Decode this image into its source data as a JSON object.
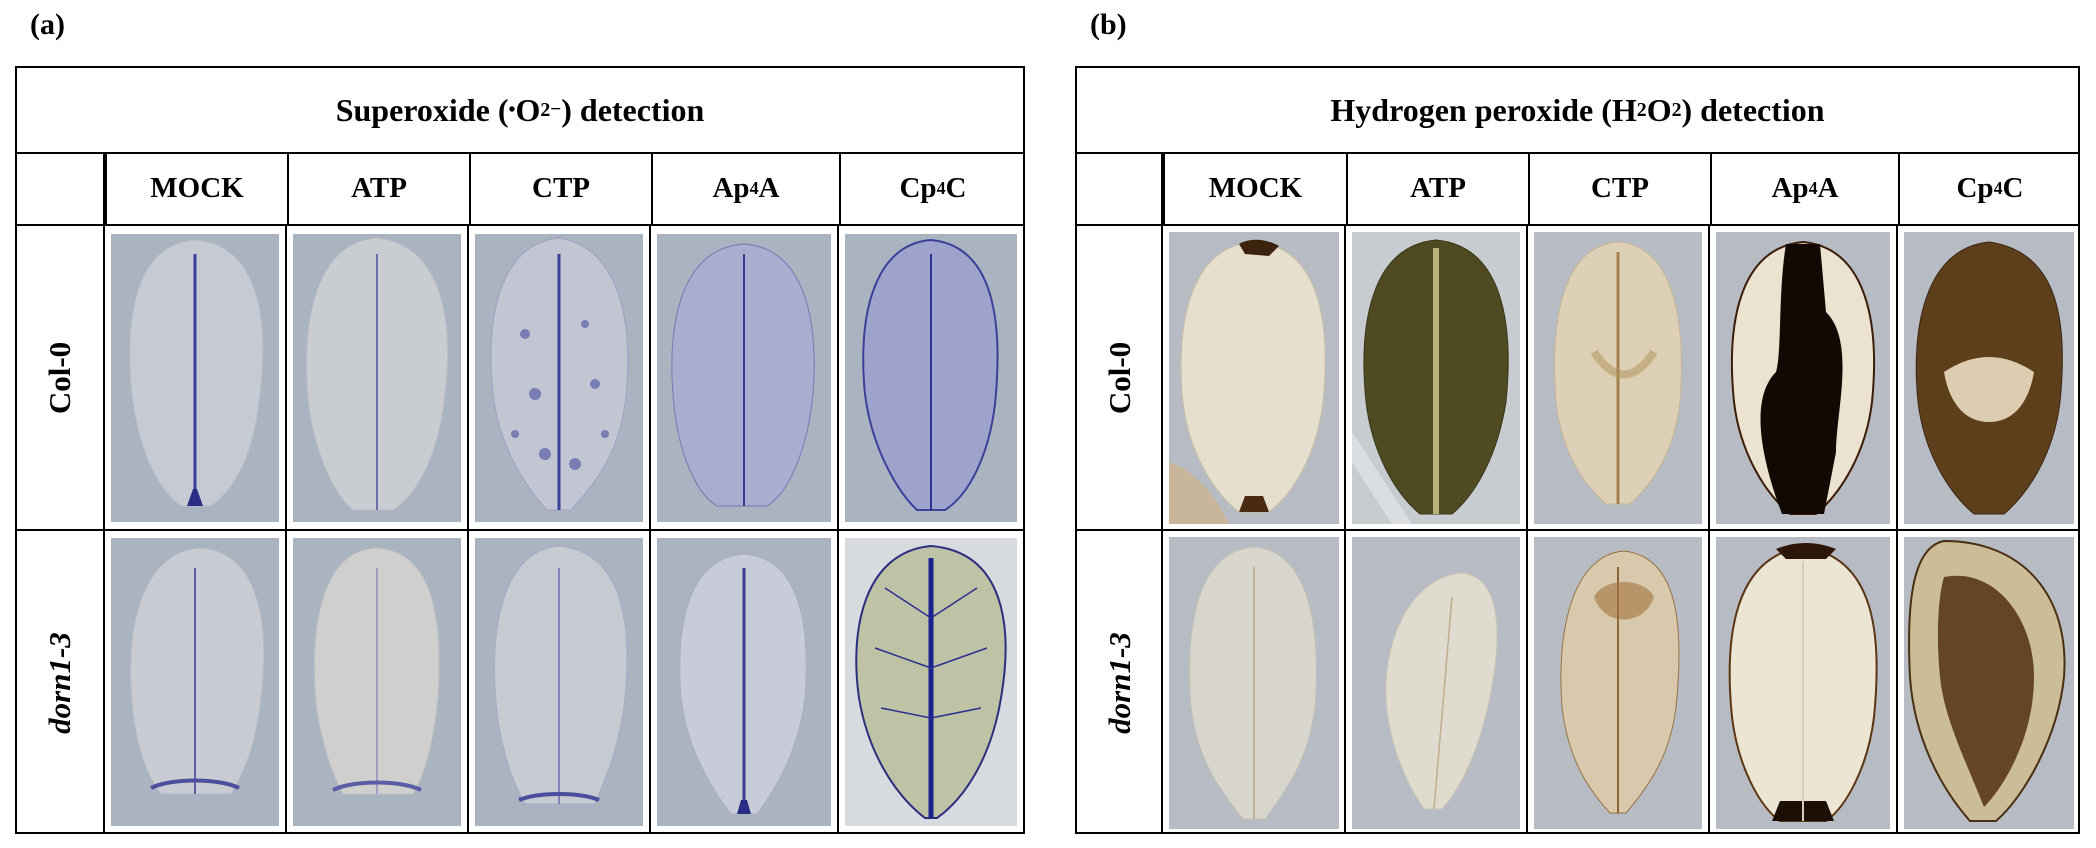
{
  "panel_a": {
    "letter": "(a)",
    "title_pre": "Superoxide (",
    "title_dot": "•",
    "title_o": "O",
    "title_sub": "2",
    "title_sup": "−",
    "title_post": ") detection",
    "columns": [
      {
        "main": "MOCK",
        "sub": "",
        "tail": ""
      },
      {
        "main": "ATP",
        "sub": "",
        "tail": ""
      },
      {
        "main": "CTP",
        "sub": "",
        "tail": ""
      },
      {
        "main": "Ap",
        "sub": "4",
        "tail": "A"
      },
      {
        "main": "Cp",
        "sub": "4",
        "tail": "C"
      }
    ],
    "rows": [
      "Col-0",
      "dorn1-3"
    ]
  },
  "panel_b": {
    "letter": "(b)",
    "title_pre": "Hydrogen peroxide (H",
    "title_sub1": "2",
    "title_mid": "O",
    "title_sub2": "2",
    "title_post": ") detection",
    "columns": [
      {
        "main": "MOCK",
        "sub": "",
        "tail": ""
      },
      {
        "main": "ATP",
        "sub": "",
        "tail": ""
      },
      {
        "main": "CTP",
        "sub": "",
        "tail": ""
      },
      {
        "main": "Ap",
        "sub": "4",
        "tail": "A"
      },
      {
        "main": "Cp",
        "sub": "4",
        "tail": "C"
      }
    ],
    "rows": [
      "Col-0",
      "dorn1-3"
    ]
  },
  "colors": {
    "background_blue_grey": "#a9b3c2",
    "nbt_stain": "#2c2f8f",
    "dab_stain": "#3a2410",
    "leaf_pale": "#e8e4d6"
  }
}
